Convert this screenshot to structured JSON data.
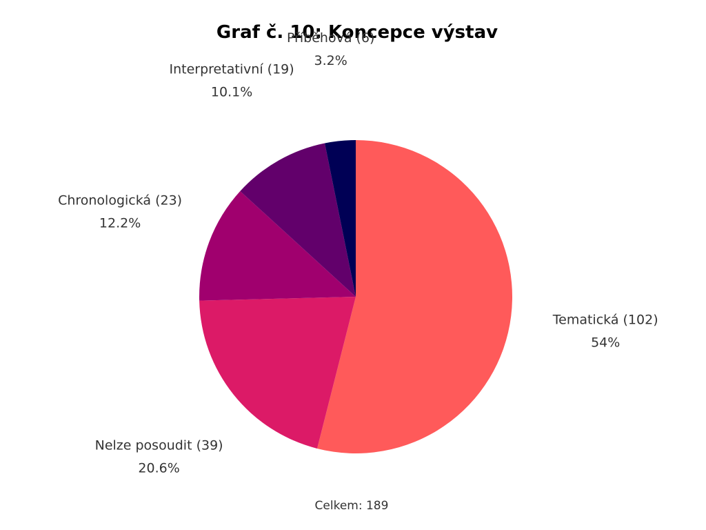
{
  "chart_data": {
    "type": "pie",
    "title": "Graf č. 10: Koncepce výstav",
    "total_text": "Celkem: 189",
    "slices": [
      {
        "label": "Tematická (102)",
        "value": 102,
        "percent_text": "54%",
        "color": "#FF5A5A"
      },
      {
        "label": "Nelze posoudit (39)",
        "value": 39,
        "percent_text": "20.6%",
        "color": "#DC1A67"
      },
      {
        "label": "Chronologická (23)",
        "value": 23,
        "percent_text": "12.2%",
        "color": "#A0006E"
      },
      {
        "label": "Interpretativní (19)",
        "value": 19,
        "percent_text": "10.1%",
        "color": "#62006B"
      },
      {
        "label": "Příběhová (6)",
        "value": 6,
        "percent_text": "3.2%",
        "color": "#000055"
      }
    ]
  }
}
